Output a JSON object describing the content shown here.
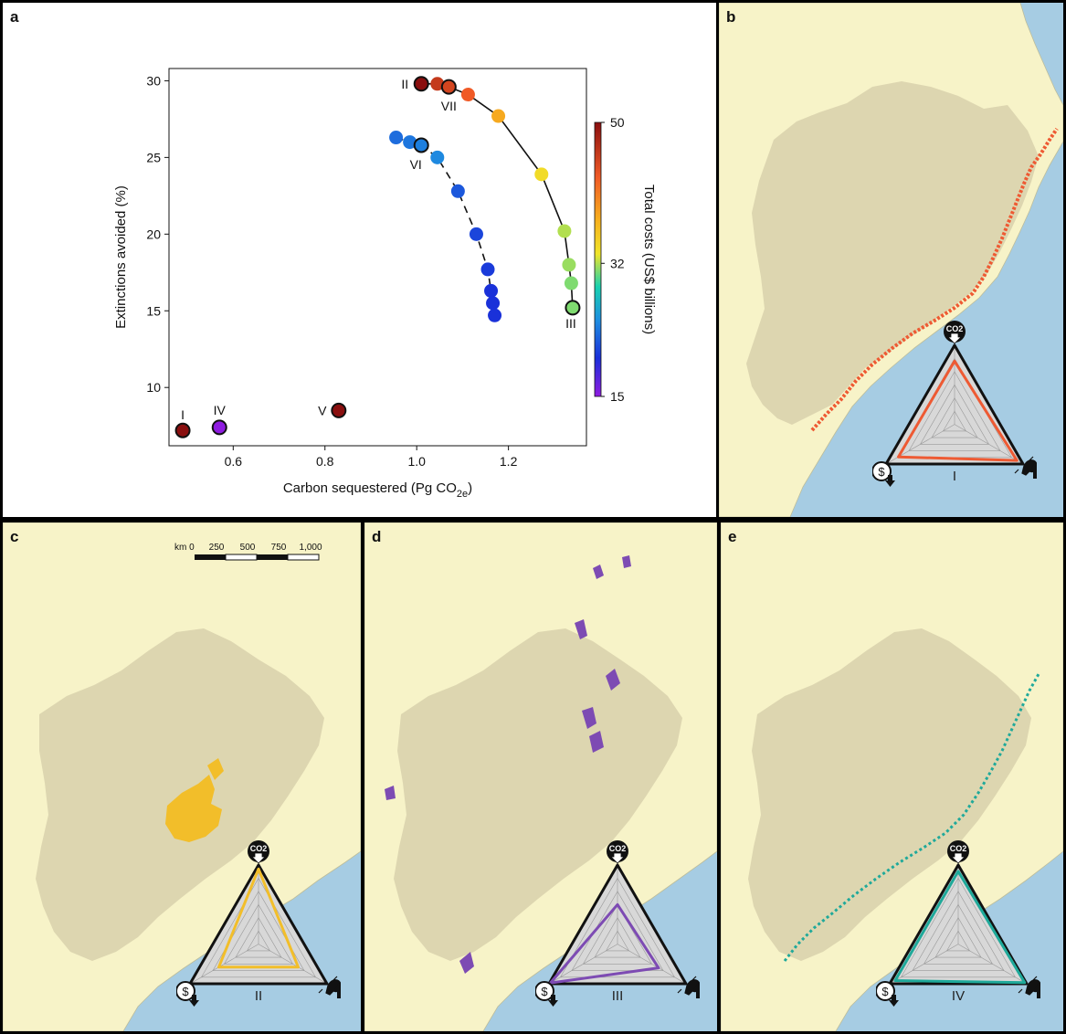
{
  "panels": {
    "a": {
      "label": "a"
    },
    "b": {
      "label": "b",
      "radar_label": "I"
    },
    "c": {
      "label": "c",
      "radar_label": "II"
    },
    "d": {
      "label": "d",
      "radar_label": "III"
    },
    "e": {
      "label": "e",
      "radar_label": "IV"
    }
  },
  "scale_bar": {
    "labels": [
      "km 0",
      "250",
      "500",
      "750",
      "1,000"
    ]
  },
  "radar_icons": {
    "top": "CO2",
    "left": "$",
    "right": "frog-icon"
  },
  "colors": {
    "ocean": "#a6cce3",
    "land": "#f7f3c8",
    "biome": "#ddd6b0",
    "highlight_b": "#ee5a33",
    "highlight_c": "#f2be2a",
    "highlight_d": "#7d4bb3",
    "highlight_e": "#1fa99a"
  },
  "chart_data": {
    "type": "scatter",
    "xlabel": "Carbon sequestered (Pg CO",
    "xlabel_sub": "2e",
    "xlabel_end": ")",
    "ylabel": "Extinctions avoided (%)",
    "xlim": [
      0.46,
      1.37
    ],
    "ylim": [
      6.2,
      30.8
    ],
    "xticks": [
      0.6,
      0.8,
      1.0,
      1.2
    ],
    "yticks": [
      10,
      15,
      20,
      25,
      30
    ],
    "colorbar": {
      "label": "Total costs (US$ billions)",
      "min": 15,
      "max": 50,
      "ticks": [
        15,
        32,
        50
      ]
    },
    "series": [
      {
        "line": "solid",
        "points": [
          {
            "x": 1.01,
            "y": 29.8,
            "cost": 50,
            "outlined": true,
            "label": "II"
          },
          {
            "x": 1.045,
            "y": 29.8,
            "cost": 46
          },
          {
            "x": 1.07,
            "y": 29.6,
            "cost": 45,
            "outlined": true,
            "label": "VII"
          },
          {
            "x": 1.112,
            "y": 29.1,
            "cost": 43
          },
          {
            "x": 1.178,
            "y": 27.7,
            "cost": 38
          },
          {
            "x": 1.272,
            "y": 23.9,
            "cost": 34
          },
          {
            "x": 1.322,
            "y": 20.2,
            "cost": 32
          },
          {
            "x": 1.332,
            "y": 18.0,
            "cost": 31.5
          },
          {
            "x": 1.337,
            "y": 16.8,
            "cost": 31
          },
          {
            "x": 1.34,
            "y": 15.2,
            "cost": 31,
            "outlined": true,
            "label": "III"
          }
        ]
      },
      {
        "line": "dashed",
        "points": [
          {
            "x": 0.955,
            "y": 26.3,
            "cost": 23
          },
          {
            "x": 0.985,
            "y": 26.0,
            "cost": 23.5
          },
          {
            "x": 1.01,
            "y": 25.8,
            "cost": 24,
            "outlined": true,
            "label": "VI"
          },
          {
            "x": 1.045,
            "y": 25.0,
            "cost": 24.5
          },
          {
            "x": 1.09,
            "y": 22.8,
            "cost": 22
          },
          {
            "x": 1.13,
            "y": 20.0,
            "cost": 21
          },
          {
            "x": 1.155,
            "y": 17.7,
            "cost": 20.5
          },
          {
            "x": 1.162,
            "y": 16.3,
            "cost": 20
          },
          {
            "x": 1.166,
            "y": 15.5,
            "cost": 20
          },
          {
            "x": 1.17,
            "y": 14.7,
            "cost": 20
          }
        ]
      },
      {
        "line": "none",
        "points": [
          {
            "x": 0.49,
            "y": 7.2,
            "cost": 50,
            "outlined": true,
            "label": "I"
          },
          {
            "x": 0.57,
            "y": 7.4,
            "cost": 15,
            "outlined": true,
            "label": "IV"
          },
          {
            "x": 0.83,
            "y": 8.5,
            "cost": 50,
            "outlined": true,
            "label": "V"
          }
        ]
      }
    ]
  }
}
